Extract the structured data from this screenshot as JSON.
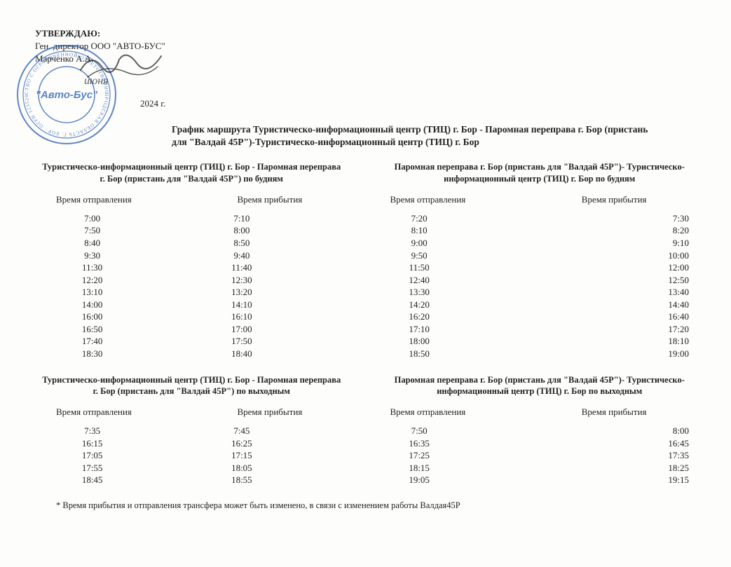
{
  "approval": {
    "title": "УТВЕРЖДАЮ:",
    "director": "Ген. директор ООО \"АВТО-БУС\"",
    "name": "Марченко А.А.",
    "stamp_text_inner": "\"Авто-Бус\"",
    "stamp_color": "#2a5db0",
    "signature_color": "#1a1a1a",
    "date_suffix": "2024 г."
  },
  "main_title": "График маршрута Туристическо-информационный центр (ТИЦ) г. Бор - Паромная переправа г. Бор (пристань для \"Валдай 45Р\")-Туристическо-информационный центр (ТИЦ) г. Бор",
  "sections": [
    {
      "left": {
        "heading": "Туристическо-информационный центр (ТИЦ) г. Бор - Паромная переправа г. Бор (пристань для \"Валдай 45Р\") по будням",
        "dep_header": "Время отправления",
        "arr_header": "Время прибытия",
        "rows": [
          {
            "dep": "7:00",
            "arr": "7:10"
          },
          {
            "dep": "7:50",
            "arr": "8:00"
          },
          {
            "dep": "8:40",
            "arr": "8:50"
          },
          {
            "dep": "9:30",
            "arr": "9:40"
          },
          {
            "dep": "11:30",
            "arr": "11:40"
          },
          {
            "dep": "12:20",
            "arr": "12:30"
          },
          {
            "dep": "13:10",
            "arr": "13:20"
          },
          {
            "dep": "14:00",
            "arr": "14:10"
          },
          {
            "dep": "16:00",
            "arr": "16:10"
          },
          {
            "dep": "16:50",
            "arr": "17:00"
          },
          {
            "dep": "17:40",
            "arr": "17:50"
          },
          {
            "dep": "18:30",
            "arr": "18:40"
          }
        ]
      },
      "right": {
        "heading": "Паромная переправа г. Бор (пристань для \"Валдай 45Р\")- Туристическо-информационный центр (ТИЦ) г. Бор по будням",
        "dep_header": "Время отправления",
        "arr_header": "Время прибытия",
        "rows": [
          {
            "dep": "7:20",
            "arr": "7:30"
          },
          {
            "dep": "8:10",
            "arr": "8:20"
          },
          {
            "dep": "9:00",
            "arr": "9:10"
          },
          {
            "dep": "9:50",
            "arr": "10:00"
          },
          {
            "dep": "11:50",
            "arr": "12:00"
          },
          {
            "dep": "12:40",
            "arr": "12:50"
          },
          {
            "dep": "13:30",
            "arr": "13:40"
          },
          {
            "dep": "14:20",
            "arr": "14:40"
          },
          {
            "dep": "16:20",
            "arr": "16:40"
          },
          {
            "dep": "17:10",
            "arr": "17:20"
          },
          {
            "dep": "18:00",
            "arr": "18:10"
          },
          {
            "dep": "18:50",
            "arr": "19:00"
          }
        ]
      }
    },
    {
      "left": {
        "heading": "Туристическо-информационный центр (ТИЦ) г. Бор - Паромная переправа г. Бор (пристань для \"Валдай 45Р\") по выходным",
        "dep_header": "Время отправления",
        "arr_header": "Время прибытия",
        "rows": [
          {
            "dep": "7:35",
            "arr": "7:45"
          },
          {
            "dep": "16:15",
            "arr": "16:25"
          },
          {
            "dep": "17:05",
            "arr": "17:15"
          },
          {
            "dep": "17:55",
            "arr": "18:05"
          },
          {
            "dep": "18:45",
            "arr": "18:55"
          }
        ]
      },
      "right": {
        "heading": "Паромная переправа г. Бор (пристань для \"Валдай 45Р\")- Туристическо-информационный центр (ТИЦ) г. Бор по выходным",
        "dep_header": "Время отправления",
        "arr_header": "Время прибытия",
        "rows": [
          {
            "dep": "7:50",
            "arr": "8:00"
          },
          {
            "dep": "16:35",
            "arr": "16:45"
          },
          {
            "dep": "17:25",
            "arr": "17:35"
          },
          {
            "dep": "18:15",
            "arr": "18:25"
          },
          {
            "dep": "19:05",
            "arr": "19:15"
          }
        ]
      }
    }
  ],
  "footnote": "* Время прибытия и отправления трансфера может быть изменено, в связи с изменением работы Валдая45Р",
  "colors": {
    "background": "#fdfdfc",
    "text": "#222222"
  },
  "typography": {
    "font_family": "Times New Roman",
    "body_fontsize_pt": 10,
    "title_fontsize_pt": 10,
    "heading_weight": "bold"
  }
}
